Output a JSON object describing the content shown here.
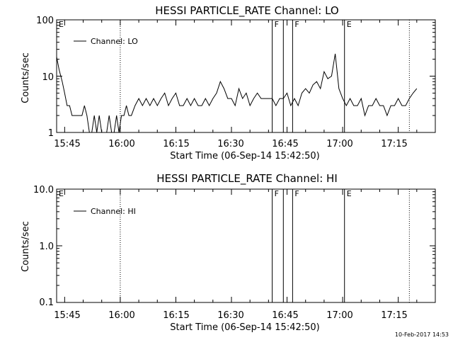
{
  "footer": {
    "timestamp": "10-Feb-2017 14:53"
  },
  "chart_data": [
    {
      "type": "line",
      "title": "HESSI PARTICLE_RATE Channel: LO",
      "xlabel": "Start Time (06-Sep-14 15:42:50)",
      "ylabel": "Counts/sec",
      "yscale": "log",
      "ylim": [
        1,
        100
      ],
      "yticks": [
        "1",
        "10",
        "100"
      ],
      "xlim": [
        "15:42:50",
        "17:25:00"
      ],
      "xticks": [
        "15:45",
        "16:00",
        "16:15",
        "16:30",
        "16:45",
        "17:00",
        "17:15"
      ],
      "legend": {
        "position": "top-left"
      },
      "markers": [
        {
          "label": "E",
          "time": "15:42:50",
          "style": "solid"
        },
        {
          "label": "",
          "time": "16:00",
          "style": "dotted"
        },
        {
          "label": "F",
          "time": "16:41",
          "style": "solid"
        },
        {
          "label": "",
          "time": "16:44",
          "style": "solid"
        },
        {
          "label": "F",
          "time": "16:46.5",
          "style": "solid"
        },
        {
          "label": "E",
          "time": "17:00.5",
          "style": "solid"
        },
        {
          "label": "",
          "time": "17:18",
          "style": "dotted"
        }
      ],
      "series": [
        {
          "name": "Channel: LO",
          "x": [
            "15:42:50",
            "15:43:30",
            "15:44:20",
            "15:45:00",
            "15:45:40",
            "15:46:20",
            "15:47:00",
            "15:47:40",
            "15:48:20",
            "15:49:00",
            "15:49:40",
            "15:50:20",
            "15:51:00",
            "15:51:40",
            "15:52:20",
            "15:53:00",
            "15:53:40",
            "15:54:20",
            "15:55:00",
            "15:55:40",
            "15:56:20",
            "15:57:00",
            "15:57:40",
            "15:58:20",
            "15:59:00",
            "15:59:40",
            "16:00:20",
            "16:01:00",
            "16:01:40",
            "16:02:20",
            "16:03:00",
            "16:04:00",
            "16:05:00",
            "16:06:00",
            "16:07:00",
            "16:08:00",
            "16:09:00",
            "16:10:00",
            "16:11:00",
            "16:12:00",
            "16:13:00",
            "16:14:00",
            "16:15:00",
            "16:16:00",
            "16:17:00",
            "16:18:00",
            "16:19:00",
            "16:20:00",
            "16:21:00",
            "16:22:00",
            "16:23:00",
            "16:24:00",
            "16:25:00",
            "16:26:00",
            "16:27:00",
            "16:28:00",
            "16:29:00",
            "16:30:00",
            "16:31:00",
            "16:32:00",
            "16:33:00",
            "16:34:00",
            "16:35:00",
            "16:36:00",
            "16:37:00",
            "16:38:00",
            "16:39:00",
            "16:40:00",
            "16:41:00",
            "16:42:00",
            "16:43:00",
            "16:44:00",
            "16:45:00",
            "16:46:00",
            "16:47:00",
            "16:48:00",
            "16:49:00",
            "16:50:00",
            "16:51:00",
            "16:52:00",
            "16:53:00",
            "16:54:00",
            "16:55:00",
            "16:56:00",
            "16:57:00",
            "16:58:00",
            "16:59:00",
            "17:00:00",
            "17:01:00",
            "17:02:00",
            "17:03:00",
            "17:04:00",
            "17:05:00",
            "17:06:00",
            "17:07:00",
            "17:08:00",
            "17:09:00",
            "17:10:00",
            "17:11:00",
            "17:12:00",
            "17:13:00",
            "17:14:00",
            "17:15:00",
            "17:16:00",
            "17:17:00",
            "17:18:00",
            "17:19:00",
            "17:20:00"
          ],
          "y": [
            22,
            13,
            8,
            5,
            3,
            3,
            2,
            2,
            2,
            2,
            2,
            3,
            2,
            1,
            1,
            2,
            1,
            2,
            1,
            1,
            1,
            2,
            1,
            1,
            2,
            1,
            2,
            2,
            3,
            2,
            2,
            3,
            4,
            3,
            4,
            3,
            4,
            3,
            4,
            5,
            3,
            4,
            5,
            3,
            3,
            4,
            3,
            4,
            3,
            3,
            4,
            3,
            4,
            5,
            8,
            6,
            4,
            4,
            3,
            6,
            4,
            5,
            3,
            4,
            5,
            4,
            4,
            4,
            4,
            3,
            4,
            4,
            5,
            3,
            4,
            3,
            5,
            6,
            5,
            7,
            8,
            6,
            12,
            9,
            10,
            25,
            6,
            4,
            3,
            4,
            3,
            3,
            4,
            2,
            3,
            3,
            4,
            3,
            3,
            2,
            3,
            3,
            4,
            3,
            3,
            4,
            5,
            6
          ]
        }
      ]
    },
    {
      "type": "line",
      "title": "HESSI PARTICLE_RATE Channel: HI",
      "xlabel": "Start Time (06-Sep-14 15:42:50)",
      "ylabel": "Counts/sec",
      "yscale": "log",
      "ylim": [
        0.1,
        10
      ],
      "yticks": [
        "0.1",
        "1.0",
        "10.0"
      ],
      "xlim": [
        "15:42:50",
        "17:25:00"
      ],
      "xticks": [
        "15:45",
        "16:00",
        "16:15",
        "16:30",
        "16:45",
        "17:00",
        "17:15"
      ],
      "legend": {
        "position": "top-left"
      },
      "markers": [
        {
          "label": "E",
          "time": "15:42:50",
          "style": "solid"
        },
        {
          "label": "",
          "time": "16:00",
          "style": "dotted"
        },
        {
          "label": "F",
          "time": "16:41",
          "style": "solid"
        },
        {
          "label": "",
          "time": "16:44",
          "style": "solid"
        },
        {
          "label": "F",
          "time": "16:46.5",
          "style": "solid"
        },
        {
          "label": "E",
          "time": "17:00.5",
          "style": "solid"
        },
        {
          "label": "",
          "time": "17:18",
          "style": "dotted"
        }
      ],
      "series": [
        {
          "name": "Channel: HI",
          "x": [],
          "y": []
        }
      ]
    }
  ]
}
